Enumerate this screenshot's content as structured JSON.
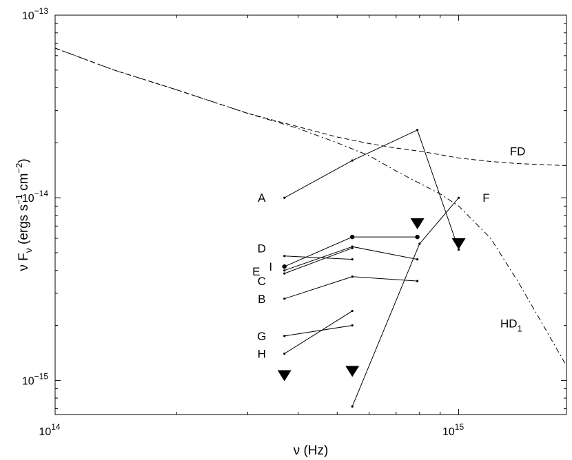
{
  "chart_data": {
    "type": "line",
    "xlabel": "ν (Hz)",
    "ylabel": "ν F_ν (ergs s^-1 cm^-2)",
    "ylabel_parts": {
      "base": "ν F",
      "sub": "ν",
      "unit_open": " (ergs s",
      "exp1": "−1",
      "unit_mid": " cm",
      "exp2": "−2",
      "unit_close": ")"
    },
    "x_scale": "log",
    "y_scale": "log",
    "xlim": [
      100000000000000.0,
      1850000000000000.0
    ],
    "ylim": [
      6.5e-16,
      1e-13
    ],
    "grid": false,
    "x_ticks": [
      {
        "value": 100000000000000.0,
        "base": "10",
        "exp": "14"
      },
      {
        "value": 1000000000000000.0,
        "base": "10",
        "exp": "15"
      }
    ],
    "y_ticks": [
      {
        "value": 1e-15,
        "base": "10",
        "exp": "−15"
      },
      {
        "value": 1e-14,
        "base": "10",
        "exp": "−14"
      },
      {
        "value": 1e-13,
        "base": "10",
        "exp": "−13"
      }
    ],
    "series": [
      {
        "name": "A",
        "x": [
          370000000000000.0,
          545000000000000.0,
          790000000000000.0,
          1000000000000000.0
        ],
        "y": [
          1e-14,
          1.6e-14,
          2.35e-14,
          5.2e-15
        ]
      },
      {
        "name": "D",
        "x": [
          370000000000000.0,
          545000000000000.0
        ],
        "y": [
          4.8e-15,
          4.6e-15
        ]
      },
      {
        "name": "I",
        "x": [
          370000000000000.0,
          545000000000000.0,
          790000000000000.0
        ],
        "y": [
          4.2e-15,
          6.1e-15,
          6.1e-15
        ],
        "big": true
      },
      {
        "name": "E",
        "x": [
          370000000000000.0,
          545000000000000.0,
          790000000000000.0
        ],
        "y": [
          4e-15,
          5.4e-15,
          4.6e-15
        ]
      },
      {
        "name": "C",
        "x": [
          370000000000000.0,
          545000000000000.0
        ],
        "y": [
          3.85e-15,
          5.3e-15
        ]
      },
      {
        "name": "B",
        "x": [
          370000000000000.0,
          545000000000000.0,
          790000000000000.0
        ],
        "y": [
          2.8e-15,
          3.7e-15,
          3.5e-15
        ]
      },
      {
        "name": "G",
        "x": [
          370000000000000.0,
          545000000000000.0
        ],
        "y": [
          1.75e-15,
          2e-15
        ]
      },
      {
        "name": "H",
        "x": [
          370000000000000.0,
          545000000000000.0
        ],
        "y": [
          1.4e-15,
          2.4e-15
        ]
      },
      {
        "name": "F",
        "x": [
          545000000000000.0,
          800000000000000.0,
          1000000000000000.0
        ],
        "y": [
          7.2e-16,
          5.6e-15,
          1e-14
        ]
      }
    ],
    "series_labels": [
      {
        "text": "A",
        "x": 325000000000000.0,
        "y": 1e-14
      },
      {
        "text": "D",
        "x": 325000000000000.0,
        "y": 5.3e-15
      },
      {
        "text": "I",
        "x": 342000000000000.0,
        "y": 4.2e-15
      },
      {
        "text": "E",
        "x": 315000000000000.0,
        "y": 3.95e-15
      },
      {
        "text": "C",
        "x": 325000000000000.0,
        "y": 3.5e-15
      },
      {
        "text": "B",
        "x": 325000000000000.0,
        "y": 2.8e-15
      },
      {
        "text": "G",
        "x": 325000000000000.0,
        "y": 1.75e-15
      },
      {
        "text": "H",
        "x": 325000000000000.0,
        "y": 1.4e-15
      },
      {
        "text": "F",
        "x": 1170000000000000.0,
        "y": 1e-14
      }
    ],
    "upper_limits": [
      {
        "x": 370000000000000.0,
        "y": 1.06e-15
      },
      {
        "x": 545000000000000.0,
        "y": 1.12e-15
      },
      {
        "x": 790000000000000.0,
        "y": 7.2e-15
      },
      {
        "x": 1000000000000000.0,
        "y": 5.6e-15
      }
    ],
    "models": [
      {
        "name": "FD",
        "dash": "dashed",
        "x": [
          100000000000000.0,
          140000000000000.0,
          200000000000000.0,
          300000000000000.0,
          400000000000000.0,
          500000000000000.0,
          600000000000000.0,
          700000000000000.0,
          800000000000000.0,
          900000000000000.0,
          1000000000000000.0,
          1200000000000000.0,
          1400000000000000.0,
          1600000000000000.0,
          1850000000000000.0
        ],
        "y": [
          6.6e-14,
          5e-14,
          3.9e-14,
          2.9e-14,
          2.45e-14,
          2.15e-14,
          1.98e-14,
          1.87e-14,
          1.8e-14,
          1.72e-14,
          1.65e-14,
          1.58e-14,
          1.54e-14,
          1.52e-14,
          1.5e-14
        ]
      },
      {
        "name": "HD_1",
        "dash": "dashdot",
        "x": [
          100000000000000.0,
          140000000000000.0,
          200000000000000.0,
          300000000000000.0,
          400000000000000.0,
          500000000000000.0,
          600000000000000.0,
          700000000000000.0,
          800000000000000.0,
          900000000000000.0,
          1000000000000000.0,
          1200000000000000.0,
          1400000000000000.0,
          1600000000000000.0,
          1850000000000000.0
        ],
        "y": [
          6.6e-14,
          5e-14,
          3.9e-14,
          2.9e-14,
          2.4e-14,
          2e-14,
          1.7e-14,
          1.4e-14,
          1.2e-14,
          1.05e-14,
          9e-15,
          6e-15,
          3.5e-15,
          2.1e-15,
          1.2e-15
        ]
      }
    ],
    "model_labels": [
      {
        "text": "FD",
        "sub": "",
        "x": 1400000000000000.0,
        "y": 1.8e-14
      },
      {
        "text": "HD",
        "sub": "1",
        "x": 1350000000000000.0,
        "y": 2.05e-15
      }
    ]
  }
}
